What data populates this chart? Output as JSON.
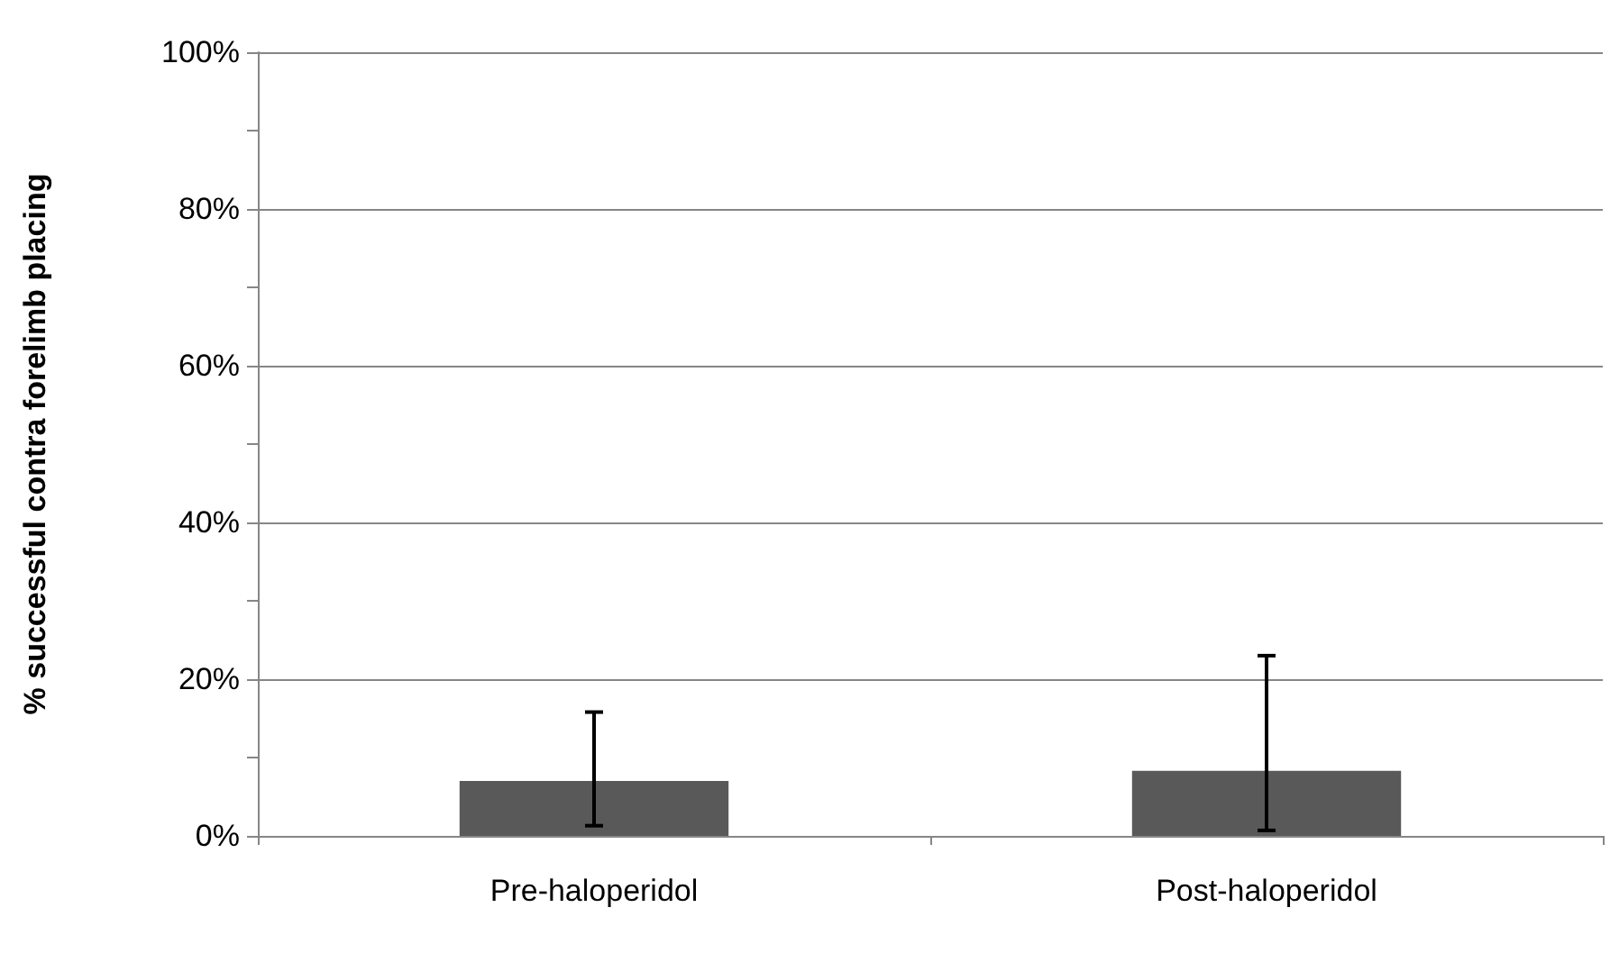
{
  "chart_data": {
    "type": "bar",
    "ylabel": "% successful contra forelimb placing",
    "categories": [
      "Pre-haloperidol",
      "Post-haloperidol"
    ],
    "values": [
      7,
      8.3
    ],
    "errors": [
      [
        1.3,
        15.8
      ],
      [
        0.7,
        23
      ]
    ],
    "color": "#595959",
    "ylim": [
      0,
      100
    ],
    "yticks": [
      {
        "value": 0,
        "label": "0%"
      },
      {
        "value": 10,
        "label": null
      },
      {
        "value": 20,
        "label": "20%"
      },
      {
        "value": 30,
        "label": null
      },
      {
        "value": 40,
        "label": "40%"
      },
      {
        "value": 50,
        "label": null
      },
      {
        "value": 60,
        "label": "60%"
      },
      {
        "value": 70,
        "label": null
      },
      {
        "value": 80,
        "label": "80%"
      },
      {
        "value": 90,
        "label": null
      },
      {
        "value": 100,
        "label": "100%"
      }
    ],
    "grid": "y"
  }
}
